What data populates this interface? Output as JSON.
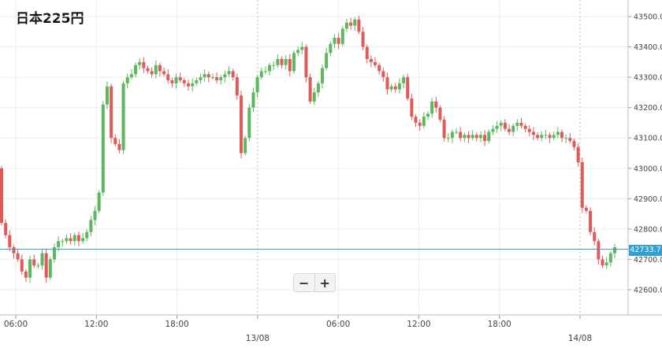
{
  "title": "日本225円",
  "zoom": {
    "minus_label": "−",
    "plus_label": "+"
  },
  "current_price_label": "42733.7",
  "colors": {
    "up": "#5cb85c",
    "down": "#e05a5a",
    "price_line": "#2ea0d6",
    "grid": "#ececec"
  },
  "chart_data": {
    "type": "candlestick",
    "title": "日本225円",
    "xlabel": "",
    "ylabel": "",
    "ylim": [
      42540,
      43540
    ],
    "grid": true,
    "current_price": 42733.7,
    "y_ticks": [
      "43500.0",
      "43400.0",
      "43300.0",
      "43200.0",
      "43100.0",
      "43000.0",
      "42900.0",
      "42800.0",
      "42700.0",
      "42600.0"
    ],
    "x_ticks": [
      {
        "label": "06:00",
        "major": false
      },
      {
        "label": "12:00",
        "major": false
      },
      {
        "label": "18:00",
        "major": false
      },
      {
        "label": "13/08",
        "major": true
      },
      {
        "label": "06:00",
        "major": false
      },
      {
        "label": "12:00",
        "major": false
      },
      {
        "label": "18:00",
        "major": false
      },
      {
        "label": "14/08",
        "major": true
      }
    ],
    "closes": [
      42820,
      42780,
      42740,
      42720,
      42700,
      42660,
      42640,
      42700,
      42680,
      42680,
      42720,
      42640,
      42700,
      42740,
      42760,
      42760,
      42770,
      42760,
      42780,
      42760,
      42770,
      42790,
      42830,
      42860,
      42920,
      43210,
      43270,
      43100,
      43080,
      43060,
      43280,
      43300,
      43310,
      43340,
      43350,
      43330,
      43320,
      43310,
      43340,
      43320,
      43310,
      43290,
      43280,
      43300,
      43290,
      43280,
      43270,
      43280,
      43290,
      43300,
      43310,
      43300,
      43300,
      43290,
      43300,
      43310,
      43320,
      43300,
      43240,
      43050,
      43100,
      43200,
      43250,
      43300,
      43320,
      43320,
      43340,
      43340,
      43360,
      43340,
      43360,
      43320,
      43380,
      43390,
      43400,
      43300,
      43220,
      43250,
      43280,
      43330,
      43380,
      43410,
      43430,
      43410,
      43460,
      43480,
      43470,
      43490,
      43450,
      43400,
      43360,
      43350,
      43340,
      43320,
      43300,
      43260,
      43270,
      43260,
      43280,
      43300,
      43230,
      43170,
      43150,
      43140,
      43170,
      43180,
      43220,
      43200,
      43160,
      43100,
      43100,
      43120,
      43120,
      43100,
      43110,
      43100,
      43110,
      43100,
      43110,
      43090,
      43120,
      43130,
      43140,
      43150,
      43130,
      43120,
      43140,
      43150,
      43140,
      43130,
      43120,
      43110,
      43100,
      43110,
      43110,
      43100,
      43110,
      43120,
      43100,
      43100,
      43090,
      43070,
      43020,
      42870,
      42860,
      42790,
      42760,
      42700,
      42680,
      42690,
      42720,
      42740
    ]
  }
}
